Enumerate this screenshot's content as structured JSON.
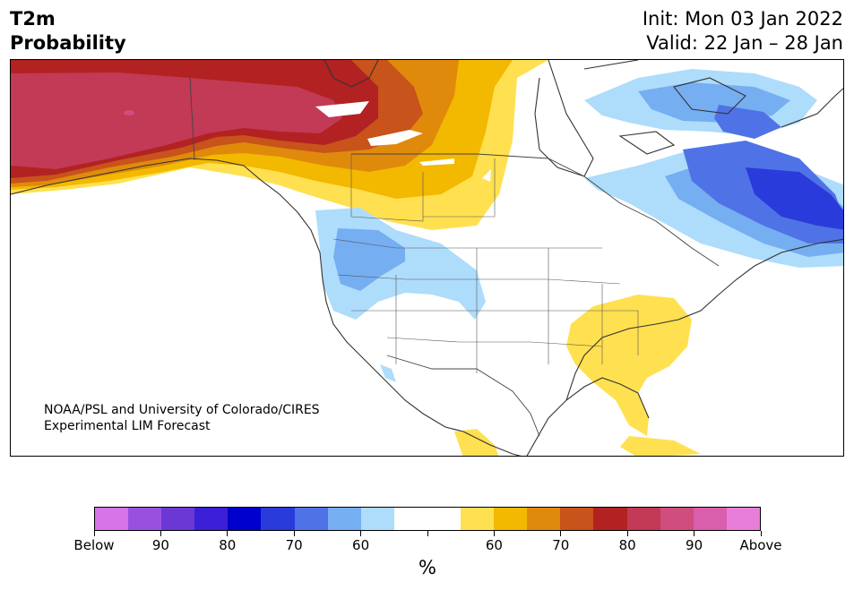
{
  "title": {
    "left_line1": "T2m",
    "left_line2": "Probability",
    "right_line1": "Init: Mon 03 Jan 2022",
    "right_line2": "Valid: 22 Jan – 28 Jan"
  },
  "credit": {
    "line1": "NOAA/PSL and University of Colorado/CIRES",
    "line2": "Experimental LIM Forecast"
  },
  "colorbar": {
    "colors": [
      "#d674e8",
      "#9a50df",
      "#6b38d6",
      "#3a1fd6",
      "#0000cc",
      "#2a3bdb",
      "#4f73e6",
      "#76aef2",
      "#aedcfb",
      "#ffffff",
      "#ffffff",
      "#ffe050",
      "#f3b800",
      "#e08a0c",
      "#c8531b",
      "#b22222",
      "#c23a55",
      "#cf4e7d",
      "#d95eab",
      "#e87ed9"
    ],
    "tick_labels": [
      "Below",
      "90",
      "80",
      "70",
      "60",
      "",
      "60",
      "70",
      "80",
      "90",
      "Above"
    ],
    "unit": "%"
  },
  "map": {
    "region": "North America",
    "legend_colors": {
      "below_light": "#aedcfb",
      "below_mid": "#76aef2",
      "below_strong": "#4f73e6",
      "below_deep": "#2a3bdb",
      "above_light": "#ffe050",
      "above_mid": "#f3b800",
      "above_orange": "#e08a0c",
      "above_rust": "#c8531b",
      "above_red": "#b22222",
      "above_crimson": "#c23a55"
    }
  }
}
